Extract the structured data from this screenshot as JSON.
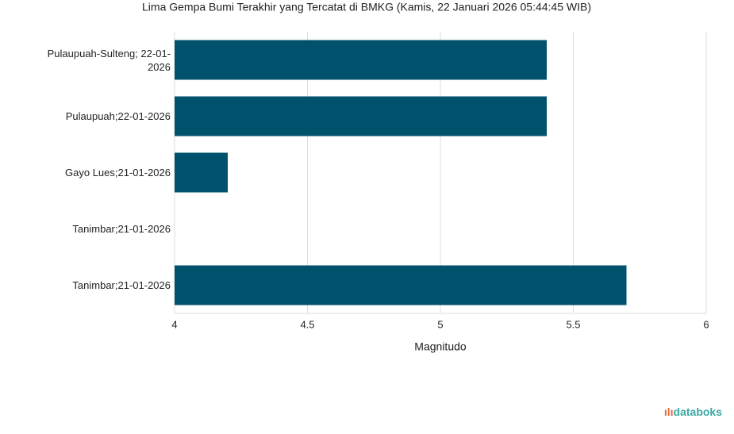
{
  "chart_data": {
    "type": "bar",
    "orientation": "horizontal",
    "title": "Lima Gempa Bumi Terakhir yang Tercatat di BMKG (Kamis, 22 Januari 2026 05:44:45 WIB)",
    "categories": [
      "Pulaupuah-Sulteng; 22-01-2026",
      "Pulaupuah;22-01-2026",
      "Gayo Lues;21-01-2026",
      "Tanimbar;21-01-2026",
      "Tanimbar;21-01-2026"
    ],
    "values": [
      5.4,
      5.4,
      4.2,
      4,
      5.7
    ],
    "color": "#00516b",
    "xlim": [
      4,
      6
    ],
    "xticks": [
      4,
      4.5,
      5,
      5.5,
      6
    ],
    "x_label": "Magnitudo",
    "grid": true
  },
  "brand": "databoks"
}
